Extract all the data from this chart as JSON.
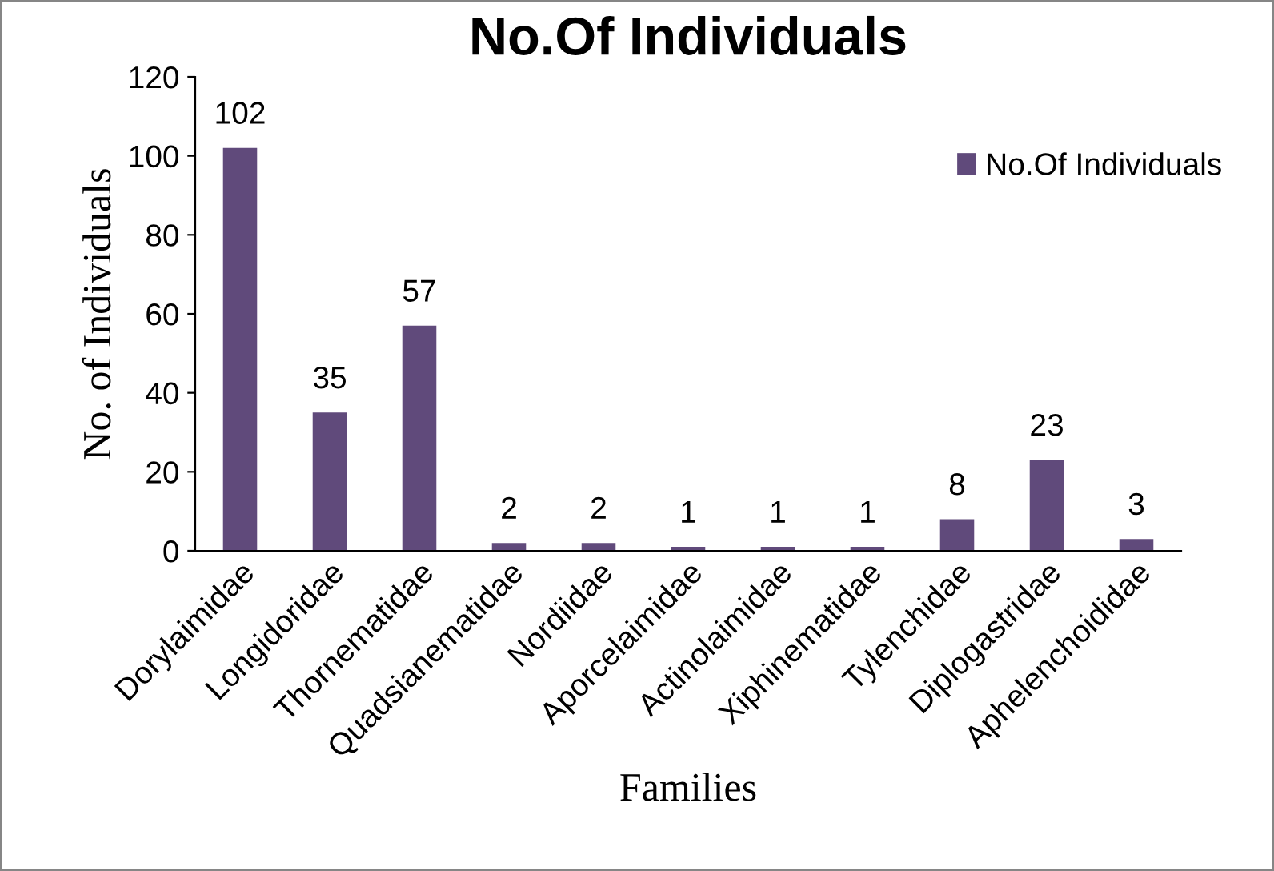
{
  "chart_data": {
    "type": "bar",
    "title": "No.Of Individuals",
    "xlabel": "Families",
    "ylabel": "No. of Individuals",
    "categories": [
      "Dorylaimidae",
      "Longidoridae",
      "Thornematidae",
      "Quadsianematidae",
      "Nordiidae",
      "Aporcelaimidae",
      "Actinolaimidae",
      "Xiphinematidae",
      "Tylenchidae",
      "Diplogastridae",
      "Aphelenchoididae"
    ],
    "series": [
      {
        "name": "No.Of Individuals",
        "color": "#604a7b",
        "values": [
          102,
          35,
          57,
          2,
          2,
          1,
          1,
          1,
          8,
          23,
          3
        ]
      }
    ],
    "ylim": [
      0,
      120
    ],
    "yticks": [
      0,
      20,
      40,
      60,
      80,
      100,
      120
    ],
    "data_labels": true,
    "legend": "top right",
    "grid": false
  }
}
